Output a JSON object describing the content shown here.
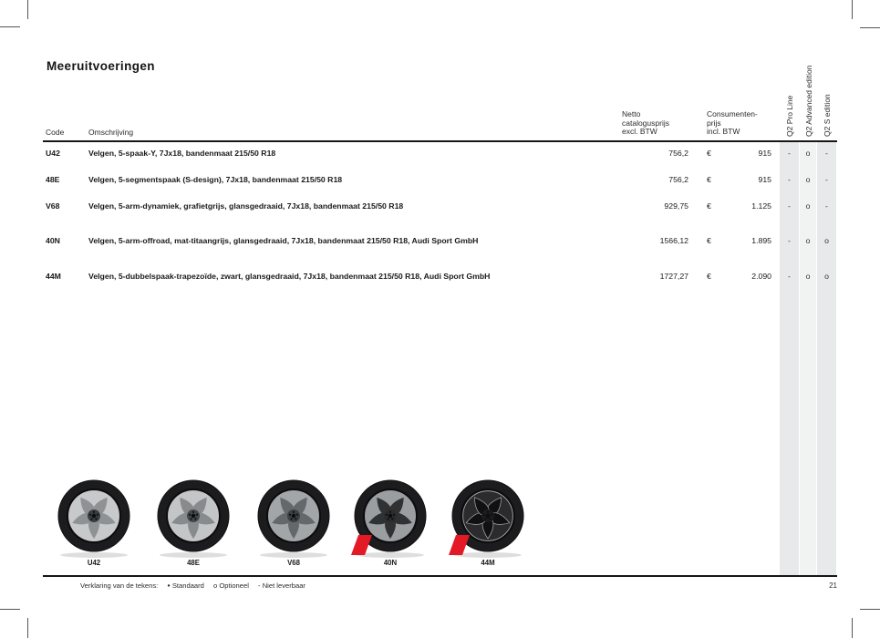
{
  "page": {
    "title": "Meeruitvoeringen",
    "page_number": "21"
  },
  "table": {
    "headers": {
      "code": "Code",
      "description": "Omschrijving",
      "net_price": "Netto\ncatalogusprijs\nexcl. BTW",
      "consumer_price": "Consumenten-\nprijs\nincl. BTW",
      "trims": [
        "Q2 Pro Line",
        "Q2 Advanced edition",
        "Q2 S edition"
      ]
    },
    "currency": "€",
    "rows": [
      {
        "code": "U42",
        "description": "Velgen, 5-spaak-Y, 7Jx18, bandenmaat 215/50 R18",
        "net_price": "756,2",
        "consumer_price": "915",
        "availability": [
          "-",
          "o",
          "-"
        ]
      },
      {
        "code": "48E",
        "description": "Velgen, 5-segmentspaak (S-design), 7Jx18, bandenmaat 215/50 R18",
        "net_price": "756,2",
        "consumer_price": "915",
        "availability": [
          "-",
          "o",
          "-"
        ]
      },
      {
        "code": "V68",
        "description": "Velgen, 5-arm-dynamiek, grafietgrijs, glansgedraaid, 7Jx18, bandenmaat 215/50 R18",
        "net_price": "929,75",
        "consumer_price": "1.125",
        "availability": [
          "-",
          "o",
          "-"
        ]
      },
      {
        "code": "40N",
        "description": "Velgen, 5-arm-offroad, mat-titaangrijs, glansgedraaid, 7Jx18, bandenmaat 215/50 R18, Audi Sport GmbH",
        "net_price": "1566,12",
        "consumer_price": "1.895",
        "availability": [
          "-",
          "o",
          "o"
        ]
      },
      {
        "code": "44M",
        "description": "Velgen, 5-dubbelspaak-trapezoïde, zwart, glansgedraaid, 7Jx18, bandenmaat 215/50 R18, Audi Sport GmbH",
        "net_price": "1727,27",
        "consumer_price": "2.090",
        "availability": [
          "-",
          "o",
          "o"
        ]
      }
    ]
  },
  "wheels": [
    {
      "code": "U42",
      "sport_badge": false,
      "style": {
        "tire": "#1c1c1e",
        "rim": "#c7c9cb",
        "gap": "#8f9295",
        "hub": "#3a3d40",
        "outline": ""
      }
    },
    {
      "code": "48E",
      "sport_badge": false,
      "style": {
        "tire": "#1c1c1e",
        "rim": "#c3c5c7",
        "gap": "#878b8e",
        "hub": "#44474a",
        "outline": ""
      }
    },
    {
      "code": "V68",
      "sport_badge": false,
      "style": {
        "tire": "#1c1c1e",
        "rim": "#a3a6a9",
        "gap": "#64686b",
        "hub": "#3c3f42",
        "outline": ""
      }
    },
    {
      "code": "40N",
      "sport_badge": true,
      "style": {
        "tire": "#1c1c1e",
        "rim": "#9b9ea1",
        "gap": "#2f3133",
        "hub": "#2a2c2e",
        "outline": ""
      }
    },
    {
      "code": "44M",
      "sport_badge": true,
      "style": {
        "tire": "#1c1c1e",
        "rim": "#2b2b2d",
        "gap": "#101011",
        "hub": "#1c1c1e",
        "outline": "#a8acae"
      }
    }
  ],
  "legend": {
    "label": "Verklaring van de tekens:",
    "items": [
      {
        "symbol": "●",
        "text": "Standaard"
      },
      {
        "symbol": "o",
        "text": "Optioneel"
      },
      {
        "symbol": "-",
        "text": "Niet leverbaar"
      }
    ]
  },
  "colors": {
    "band_dark": "#e7e9ea",
    "band_light": "#f1f2f2",
    "rule": "#161616",
    "sport_red": "#e31926"
  }
}
